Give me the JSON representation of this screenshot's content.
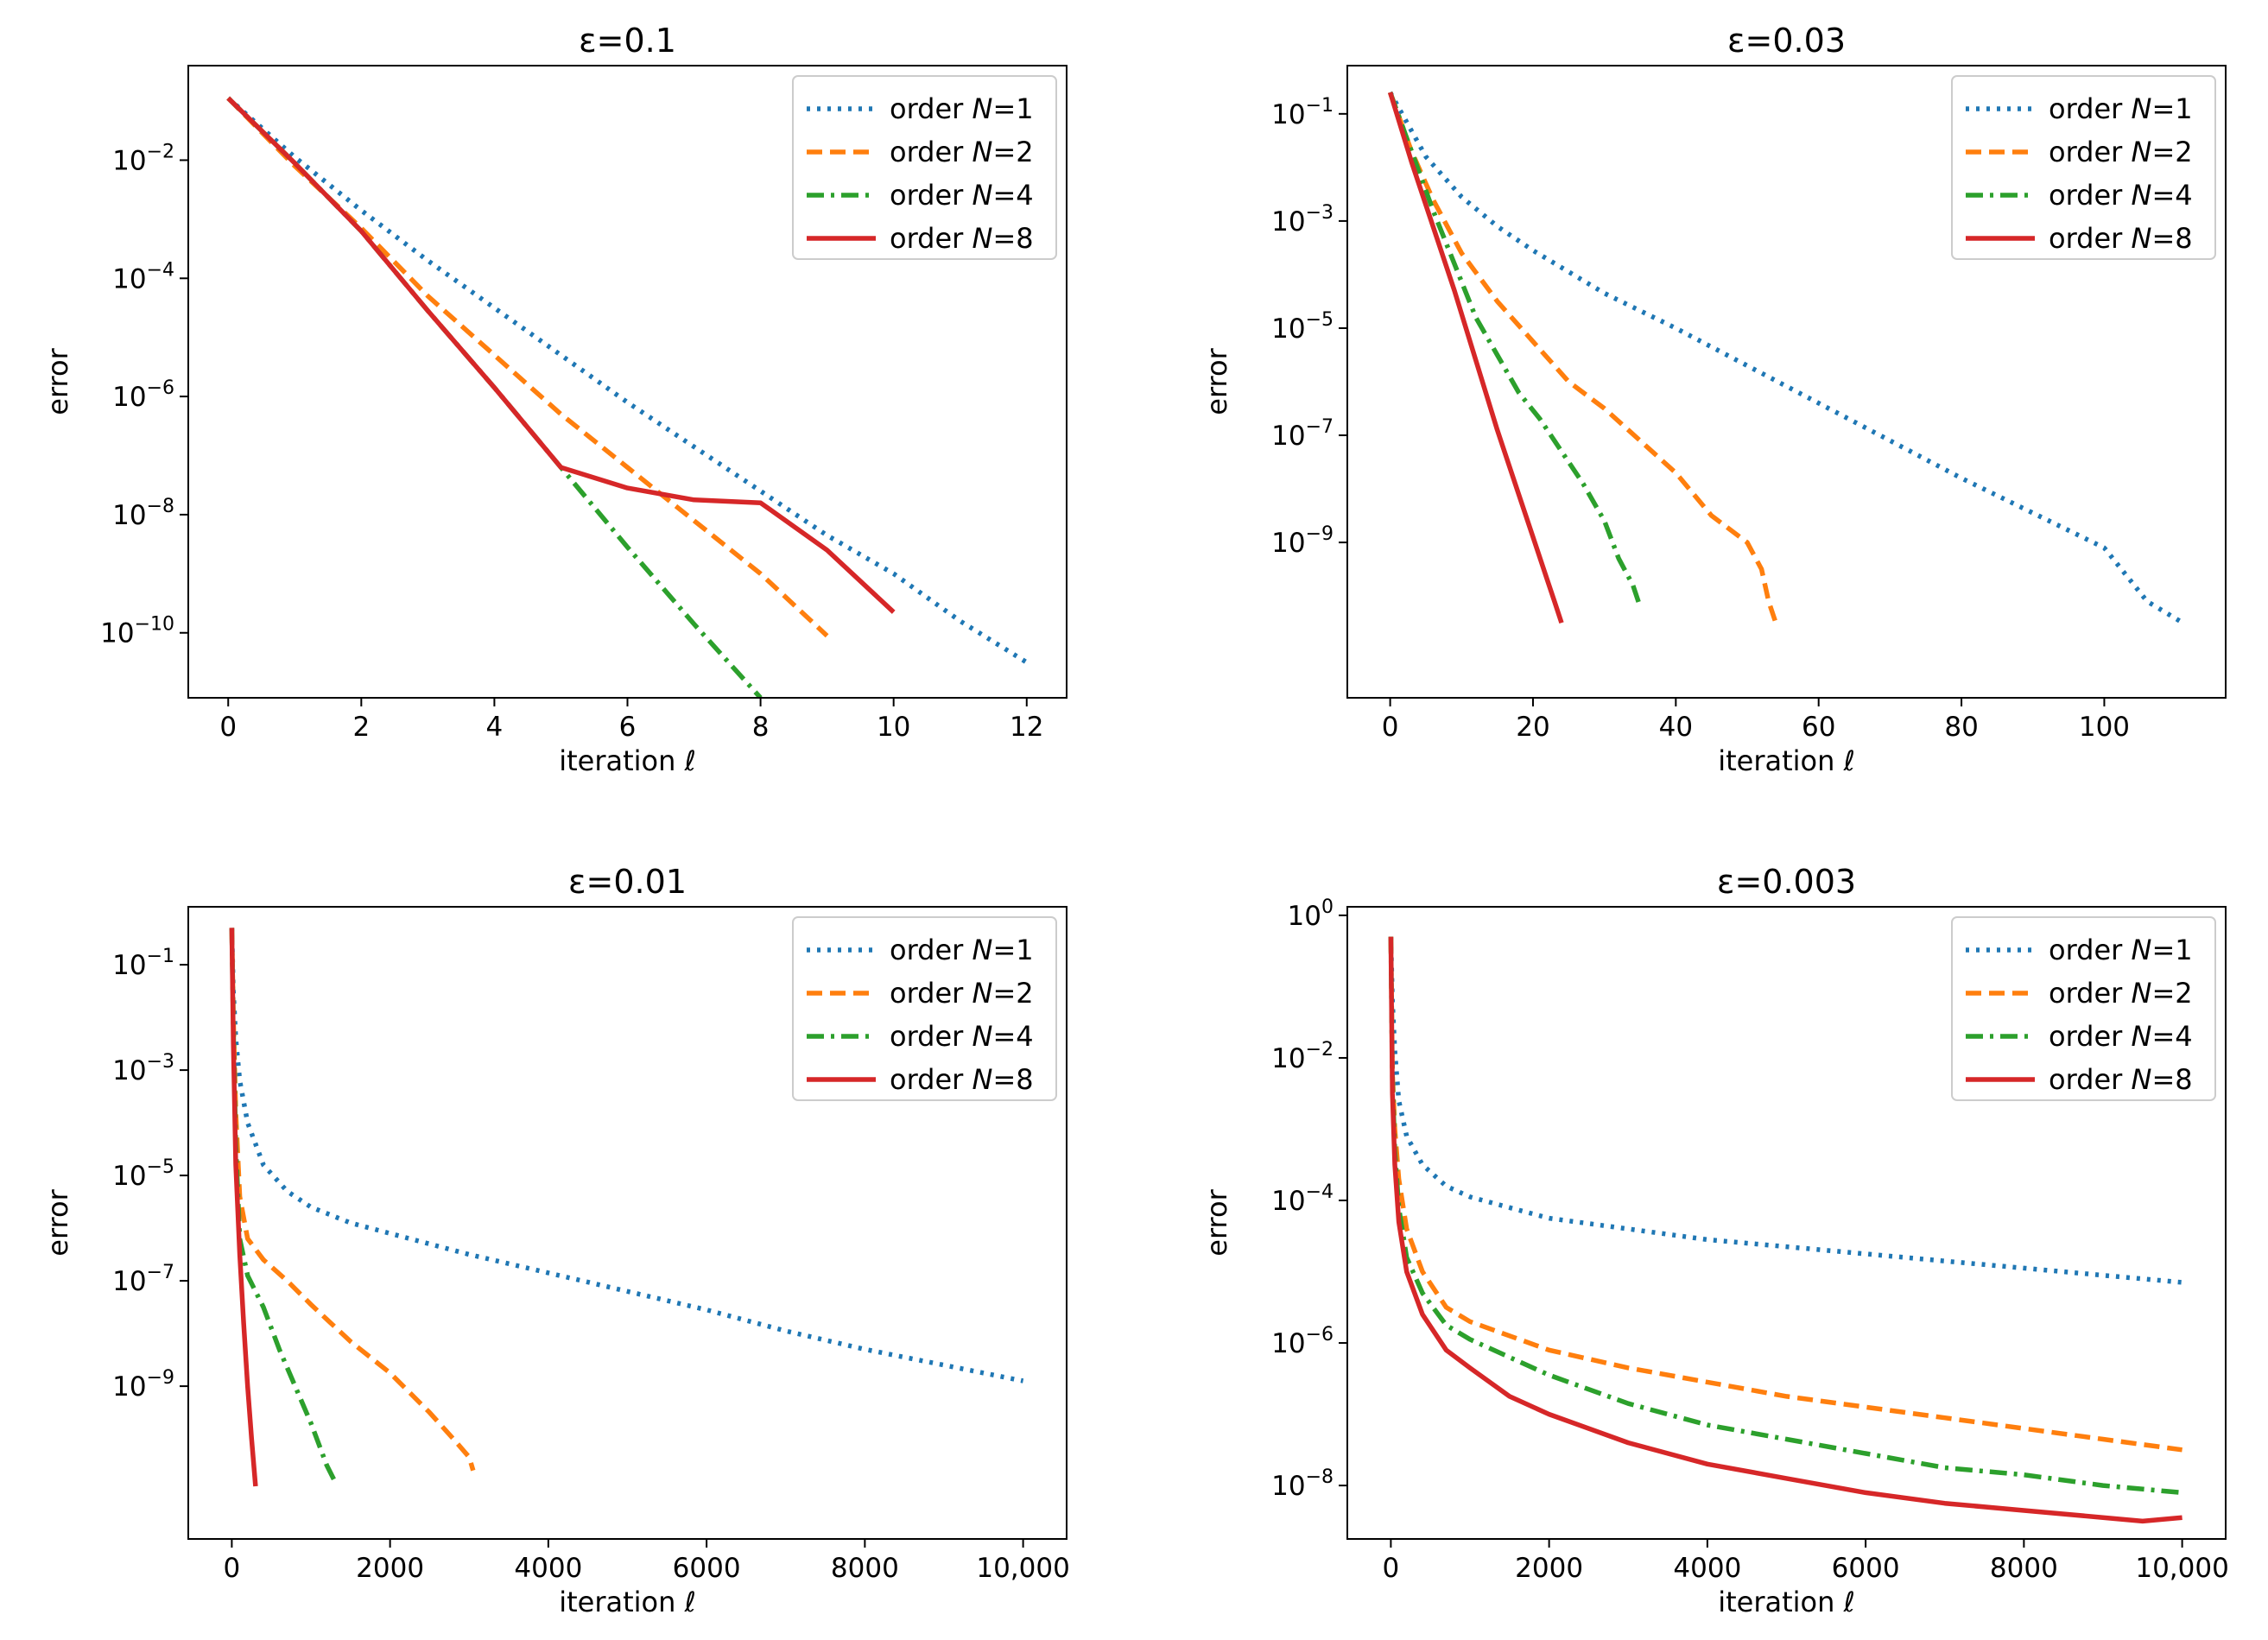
{
  "colors": {
    "N1": "#1f77b4",
    "N2": "#ff7f0e",
    "N4": "#2ca02c",
    "N8": "#d62728"
  },
  "chart_data": [
    {
      "type": "line",
      "title": "ε=0.1",
      "xlabel": "iteration ℓ",
      "ylabel": "error",
      "yscale": "log",
      "xlim": [
        -0.6,
        12.6
      ],
      "ylim": [
        -11.1,
        -0.4
      ],
      "xticks": [
        0,
        2,
        4,
        6,
        8,
        10,
        12
      ],
      "xtick_labels": [
        "0",
        "2",
        "4",
        "6",
        "8",
        "10",
        "12"
      ],
      "yticks": [
        -2,
        -4,
        -6,
        -8,
        -10
      ],
      "ytick_labels": [
        {
          "base": "10",
          "exp": "−2"
        },
        {
          "base": "10",
          "exp": "−4"
        },
        {
          "base": "10",
          "exp": "−6"
        },
        {
          "base": "10",
          "exp": "−8"
        },
        {
          "base": "10",
          "exp": "−10"
        }
      ],
      "legend": "top-right",
      "series": [
        {
          "name": "order N=1",
          "prefix": "order ",
          "var": "N",
          "suffix": "=1",
          "color_key": "N1",
          "style": "dotted",
          "x": [
            0,
            1,
            2,
            3,
            4,
            5,
            6,
            7,
            8,
            9,
            10,
            11,
            12
          ],
          "log10_y": [
            -0.95,
            -1.95,
            -2.85,
            -3.7,
            -4.5,
            -5.3,
            -6.1,
            -6.85,
            -7.6,
            -8.35,
            -9.0,
            -9.8,
            -10.5
          ]
        },
        {
          "name": "order N=2",
          "prefix": "order ",
          "var": "N",
          "suffix": "=2",
          "color_key": "N2",
          "style": "dashed",
          "x": [
            0,
            1,
            2,
            3,
            4,
            5,
            6,
            7,
            8,
            9
          ],
          "log10_y": [
            -0.95,
            -2.1,
            -3.15,
            -4.3,
            -5.3,
            -6.3,
            -7.2,
            -8.1,
            -9.0,
            -10.05
          ]
        },
        {
          "name": "order N=4",
          "prefix": "order ",
          "var": "N",
          "suffix": "=4",
          "color_key": "N4",
          "style": "dashdot",
          "x": [
            0,
            1,
            2,
            3,
            4,
            5,
            6,
            7,
            8
          ],
          "log10_y": [
            -0.95,
            -2.05,
            -3.2,
            -4.55,
            -5.85,
            -7.2,
            -8.55,
            -9.85,
            -11.1
          ]
        },
        {
          "name": "order N=8",
          "prefix": "order ",
          "var": "N",
          "suffix": "=8",
          "color_key": "N8",
          "style": "solid",
          "x": [
            0,
            1,
            2,
            3,
            4,
            5,
            6,
            7,
            8,
            9,
            10
          ],
          "log10_y": [
            -0.95,
            -2.05,
            -3.2,
            -4.55,
            -5.85,
            -7.2,
            -7.55,
            -7.75,
            -7.8,
            -8.6,
            -9.65
          ]
        }
      ]
    },
    {
      "type": "line",
      "title": "ε=0.03",
      "xlabel": "iteration ℓ",
      "ylabel": "error",
      "yscale": "log",
      "xlim": [
        -6,
        117
      ],
      "ylim": [
        -11.9,
        -0.1
      ],
      "xticks": [
        0,
        20,
        40,
        60,
        80,
        100
      ],
      "xtick_labels": [
        "0",
        "20",
        "40",
        "60",
        "80",
        "100"
      ],
      "yticks": [
        -1,
        -3,
        -5,
        -7,
        -9
      ],
      "ytick_labels": [
        {
          "base": "10",
          "exp": "−1"
        },
        {
          "base": "10",
          "exp": "−3"
        },
        {
          "base": "10",
          "exp": "−5"
        },
        {
          "base": "10",
          "exp": "−7"
        },
        {
          "base": "10",
          "exp": "−9"
        }
      ],
      "legend": "top-right",
      "series": [
        {
          "name": "order N=1",
          "prefix": "order ",
          "var": "N",
          "suffix": "=1",
          "color_key": "N1",
          "style": "dotted",
          "x": [
            0,
            5,
            10,
            15,
            20,
            30,
            40,
            50,
            60,
            70,
            80,
            90,
            100,
            103,
            106,
            111
          ],
          "log10_y": [
            -0.6,
            -1.8,
            -2.55,
            -3.1,
            -3.55,
            -4.35,
            -5.0,
            -5.7,
            -6.4,
            -7.1,
            -7.8,
            -8.45,
            -9.1,
            -9.6,
            -10.1,
            -10.5
          ]
        },
        {
          "name": "order N=2",
          "prefix": "order ",
          "var": "N",
          "suffix": "=2",
          "color_key": "N2",
          "style": "dashed",
          "x": [
            0,
            3,
            6,
            10,
            15,
            20,
            25,
            30,
            35,
            40,
            45,
            50,
            52,
            53,
            54
          ],
          "log10_y": [
            -0.6,
            -1.7,
            -2.6,
            -3.6,
            -4.5,
            -5.25,
            -6.0,
            -6.5,
            -7.1,
            -7.7,
            -8.5,
            -9.0,
            -9.5,
            -10.1,
            -10.5
          ]
        },
        {
          "name": "order N=4",
          "prefix": "order ",
          "var": "N",
          "suffix": "=4",
          "color_key": "N4",
          "style": "dashdot",
          "x": [
            0,
            3,
            6,
            9,
            12,
            15,
            18,
            21,
            24,
            27,
            30,
            32,
            34,
            35
          ],
          "log10_y": [
            -0.6,
            -1.7,
            -2.8,
            -3.8,
            -4.8,
            -5.5,
            -6.2,
            -6.7,
            -7.3,
            -7.9,
            -8.6,
            -9.3,
            -9.8,
            -10.2
          ]
        },
        {
          "name": "order N=8",
          "prefix": "order ",
          "var": "N",
          "suffix": "=8",
          "color_key": "N8",
          "style": "solid",
          "x": [
            0,
            3,
            6,
            9,
            12,
            15,
            18,
            20,
            22,
            23,
            24
          ],
          "log10_y": [
            -0.6,
            -1.9,
            -3.1,
            -4.3,
            -5.6,
            -6.9,
            -8.1,
            -8.9,
            -9.7,
            -10.1,
            -10.5
          ]
        }
      ]
    },
    {
      "type": "line",
      "title": "ε=0.01",
      "xlabel": "iteration ℓ",
      "ylabel": "error",
      "yscale": "log",
      "xlim": [
        -550,
        10550
      ],
      "ylim": [
        -11.9,
        0.1
      ],
      "xticks": [
        0,
        2000,
        4000,
        6000,
        8000,
        10000
      ],
      "xtick_labels": [
        "0",
        "2000",
        "4000",
        "6000",
        "8000",
        "10,000"
      ],
      "yticks": [
        -1,
        -3,
        -5,
        -7,
        -9
      ],
      "ytick_labels": [
        {
          "base": "10",
          "exp": "−1"
        },
        {
          "base": "10",
          "exp": "−3"
        },
        {
          "base": "10",
          "exp": "−5"
        },
        {
          "base": "10",
          "exp": "−7"
        },
        {
          "base": "10",
          "exp": "−9"
        }
      ],
      "legend": "top-right",
      "series": [
        {
          "name": "order N=1",
          "prefix": "order ",
          "var": "N",
          "suffix": "=1",
          "color_key": "N1",
          "style": "dotted",
          "x": [
            0,
            20,
            50,
            100,
            200,
            400,
            700,
            1000,
            1500,
            2000,
            3000,
            4000,
            5000,
            6000,
            7000,
            8000,
            9000,
            10000
          ],
          "log10_y": [
            -0.3,
            -1.5,
            -2.4,
            -3.2,
            -4.0,
            -4.8,
            -5.3,
            -5.6,
            -5.9,
            -6.1,
            -6.5,
            -6.85,
            -7.2,
            -7.55,
            -7.95,
            -8.3,
            -8.6,
            -8.9
          ]
        },
        {
          "name": "order N=2",
          "prefix": "order ",
          "var": "N",
          "suffix": "=2",
          "color_key": "N2",
          "style": "dashed",
          "x": [
            0,
            20,
            50,
            100,
            200,
            400,
            700,
            1000,
            1500,
            2000,
            2500,
            2800,
            3000,
            3050
          ],
          "log10_y": [
            -0.3,
            -2.0,
            -3.8,
            -5.4,
            -6.2,
            -6.6,
            -7.0,
            -7.45,
            -8.15,
            -8.75,
            -9.5,
            -10.0,
            -10.35,
            -10.6
          ]
        },
        {
          "name": "order N=4",
          "prefix": "order ",
          "var": "N",
          "suffix": "=4",
          "color_key": "N4",
          "style": "dashdot",
          "x": [
            0,
            20,
            50,
            100,
            200,
            400,
            600,
            800,
            1000,
            1200,
            1300
          ],
          "log10_y": [
            -0.3,
            -2.2,
            -4.4,
            -6.2,
            -6.9,
            -7.5,
            -8.3,
            -9.0,
            -9.7,
            -10.5,
            -10.8
          ]
        },
        {
          "name": "order N=8",
          "prefix": "order ",
          "var": "N",
          "suffix": "=8",
          "color_key": "N8",
          "style": "solid",
          "x": [
            0,
            20,
            50,
            100,
            150,
            200,
            250,
            300
          ],
          "log10_y": [
            -0.3,
            -2.5,
            -4.8,
            -6.5,
            -7.8,
            -9.0,
            -10.0,
            -10.9
          ]
        }
      ]
    },
    {
      "type": "line",
      "title": "ε=0.003",
      "xlabel": "iteration ℓ",
      "ylabel": "error",
      "yscale": "log",
      "xlim": [
        -550,
        10550
      ],
      "ylim": [
        -8.75,
        0.12
      ],
      "xticks": [
        0,
        2000,
        4000,
        6000,
        8000,
        10000
      ],
      "xtick_labels": [
        "0",
        "2000",
        "4000",
        "6000",
        "8000",
        "10,000"
      ],
      "yticks": [
        0,
        -2,
        -4,
        -6,
        -8
      ],
      "ytick_labels": [
        {
          "base": "10",
          "exp": "0"
        },
        {
          "base": "10",
          "exp": "−2"
        },
        {
          "base": "10",
          "exp": "−4"
        },
        {
          "base": "10",
          "exp": "−6"
        },
        {
          "base": "10",
          "exp": "−8"
        }
      ],
      "legend": "top-right",
      "series": [
        {
          "name": "order N=1",
          "prefix": "order ",
          "var": "N",
          "suffix": "=1",
          "color_key": "N1",
          "style": "dotted",
          "x": [
            0,
            20,
            50,
            100,
            200,
            400,
            700,
            1000,
            1500,
            2000,
            3000,
            4000,
            5000,
            6000,
            7000,
            8000,
            9000,
            10000
          ],
          "log10_y": [
            -0.3,
            -1.2,
            -1.9,
            -2.6,
            -3.1,
            -3.5,
            -3.8,
            -3.95,
            -4.1,
            -4.25,
            -4.4,
            -4.55,
            -4.65,
            -4.75,
            -4.85,
            -4.95,
            -5.05,
            -5.15
          ]
        },
        {
          "name": "order N=2",
          "prefix": "order ",
          "var": "N",
          "suffix": "=2",
          "color_key": "N2",
          "style": "dashed",
          "x": [
            0,
            20,
            50,
            100,
            200,
            400,
            700,
            1000,
            1500,
            2000,
            3000,
            4000,
            5000,
            6000,
            7000,
            8000,
            9000,
            10000
          ],
          "log10_y": [
            -0.3,
            -2.2,
            -3.0,
            -3.7,
            -4.4,
            -5.0,
            -5.5,
            -5.7,
            -5.9,
            -6.1,
            -6.35,
            -6.55,
            -6.75,
            -6.9,
            -7.05,
            -7.2,
            -7.35,
            -7.5
          ]
        },
        {
          "name": "order N=4",
          "prefix": "order ",
          "var": "N",
          "suffix": "=4",
          "color_key": "N4",
          "style": "dashdot",
          "x": [
            0,
            20,
            50,
            100,
            200,
            400,
            700,
            1000,
            1500,
            2000,
            3000,
            4000,
            5000,
            6000,
            7000,
            8000,
            9000,
            10000
          ],
          "log10_y": [
            -0.3,
            -2.3,
            -3.3,
            -4.1,
            -4.8,
            -5.3,
            -5.75,
            -5.95,
            -6.2,
            -6.45,
            -6.85,
            -7.15,
            -7.35,
            -7.55,
            -7.75,
            -7.85,
            -8.0,
            -8.1
          ]
        },
        {
          "name": "order N=8",
          "prefix": "order ",
          "var": "N",
          "suffix": "=8",
          "color_key": "N8",
          "style": "solid",
          "x": [
            0,
            20,
            50,
            100,
            200,
            400,
            700,
            1000,
            1500,
            2000,
            3000,
            4000,
            5000,
            6000,
            7000,
            8000,
            9000,
            9500,
            10000
          ],
          "log10_y": [
            -0.3,
            -2.5,
            -3.5,
            -4.3,
            -5.0,
            -5.6,
            -6.1,
            -6.35,
            -6.75,
            -7.0,
            -7.4,
            -7.7,
            -7.9,
            -8.1,
            -8.25,
            -8.35,
            -8.45,
            -8.5,
            -8.45
          ]
        }
      ]
    }
  ]
}
